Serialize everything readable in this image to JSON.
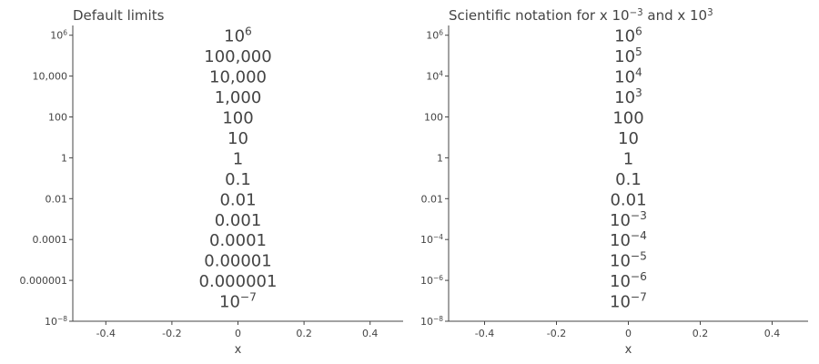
{
  "chart_data": [
    {
      "type": "scatter",
      "title": "Default limits",
      "xlabel": "x",
      "ylabel": "",
      "xlim": [
        -0.5,
        0.5
      ],
      "x_ticks": [
        {
          "v": -0.4,
          "label": "-0.4"
        },
        {
          "v": -0.2,
          "label": "-0.2"
        },
        {
          "v": 0,
          "label": "0"
        },
        {
          "v": 0.2,
          "label": "0.2"
        },
        {
          "v": 0.4,
          "label": "0.4"
        }
      ],
      "y_scale": "log",
      "ylim": [
        1e-08,
        3000000.0
      ],
      "y_ticks": [
        {
          "v": 1000000.0,
          "label": "10^6"
        },
        {
          "v": 10000.0,
          "label": "10,000"
        },
        {
          "v": 100,
          "label": "100"
        },
        {
          "v": 1,
          "label": "1"
        },
        {
          "v": 0.01,
          "label": "0.01"
        },
        {
          "v": 0.0001,
          "label": "0.0001"
        },
        {
          "v": 1e-06,
          "label": "0.000001"
        },
        {
          "v": 1e-08,
          "label": "10^−8"
        }
      ],
      "points": [
        {
          "x": 0,
          "y": 1000000.0,
          "label": "10^6"
        },
        {
          "x": 0,
          "y": 100000.0,
          "label": "100,000"
        },
        {
          "x": 0,
          "y": 10000.0,
          "label": "10,000"
        },
        {
          "x": 0,
          "y": 1000.0,
          "label": "1,000"
        },
        {
          "x": 0,
          "y": 100,
          "label": "100"
        },
        {
          "x": 0,
          "y": 10,
          "label": "10"
        },
        {
          "x": 0,
          "y": 1,
          "label": "1"
        },
        {
          "x": 0,
          "y": 0.1,
          "label": "0.1"
        },
        {
          "x": 0,
          "y": 0.01,
          "label": "0.01"
        },
        {
          "x": 0,
          "y": 0.001,
          "label": "0.001"
        },
        {
          "x": 0,
          "y": 0.0001,
          "label": "0.0001"
        },
        {
          "x": 0,
          "y": 1e-05,
          "label": "0.00001"
        },
        {
          "x": 0,
          "y": 1e-06,
          "label": "0.000001"
        },
        {
          "x": 0,
          "y": 1e-07,
          "label": "10^−7"
        }
      ]
    },
    {
      "type": "scatter",
      "title": "Scientific notation for x  10^−3 and x  10^3",
      "xlabel": "x",
      "ylabel": "",
      "xlim": [
        -0.5,
        0.5
      ],
      "x_ticks": [
        {
          "v": -0.4,
          "label": "-0.4"
        },
        {
          "v": -0.2,
          "label": "-0.2"
        },
        {
          "v": 0,
          "label": "0"
        },
        {
          "v": 0.2,
          "label": "0.2"
        },
        {
          "v": 0.4,
          "label": "0.4"
        }
      ],
      "y_scale": "log",
      "ylim": [
        1e-08,
        3000000.0
      ],
      "y_ticks": [
        {
          "v": 1000000.0,
          "label": "10^6"
        },
        {
          "v": 10000.0,
          "label": "10^4"
        },
        {
          "v": 100,
          "label": "100"
        },
        {
          "v": 1,
          "label": "1"
        },
        {
          "v": 0.01,
          "label": "0.01"
        },
        {
          "v": 0.0001,
          "label": "10^−4"
        },
        {
          "v": 1e-06,
          "label": "10^−6"
        },
        {
          "v": 1e-08,
          "label": "10^−8"
        }
      ],
      "points": [
        {
          "x": 0,
          "y": 1000000.0,
          "label": "10^6"
        },
        {
          "x": 0,
          "y": 100000.0,
          "label": "10^5"
        },
        {
          "x": 0,
          "y": 10000.0,
          "label": "10^4"
        },
        {
          "x": 0,
          "y": 1000.0,
          "label": "10^3"
        },
        {
          "x": 0,
          "y": 100,
          "label": "100"
        },
        {
          "x": 0,
          "y": 10,
          "label": "10"
        },
        {
          "x": 0,
          "y": 1,
          "label": "1"
        },
        {
          "x": 0,
          "y": 0.1,
          "label": "0.1"
        },
        {
          "x": 0,
          "y": 0.01,
          "label": "0.01"
        },
        {
          "x": 0,
          "y": 0.001,
          "label": "10^−3"
        },
        {
          "x": 0,
          "y": 0.0001,
          "label": "10^−4"
        },
        {
          "x": 0,
          "y": 1e-05,
          "label": "10^−5"
        },
        {
          "x": 0,
          "y": 1e-06,
          "label": "10^−6"
        },
        {
          "x": 0,
          "y": 1e-07,
          "label": "10^−7"
        }
      ]
    }
  ]
}
